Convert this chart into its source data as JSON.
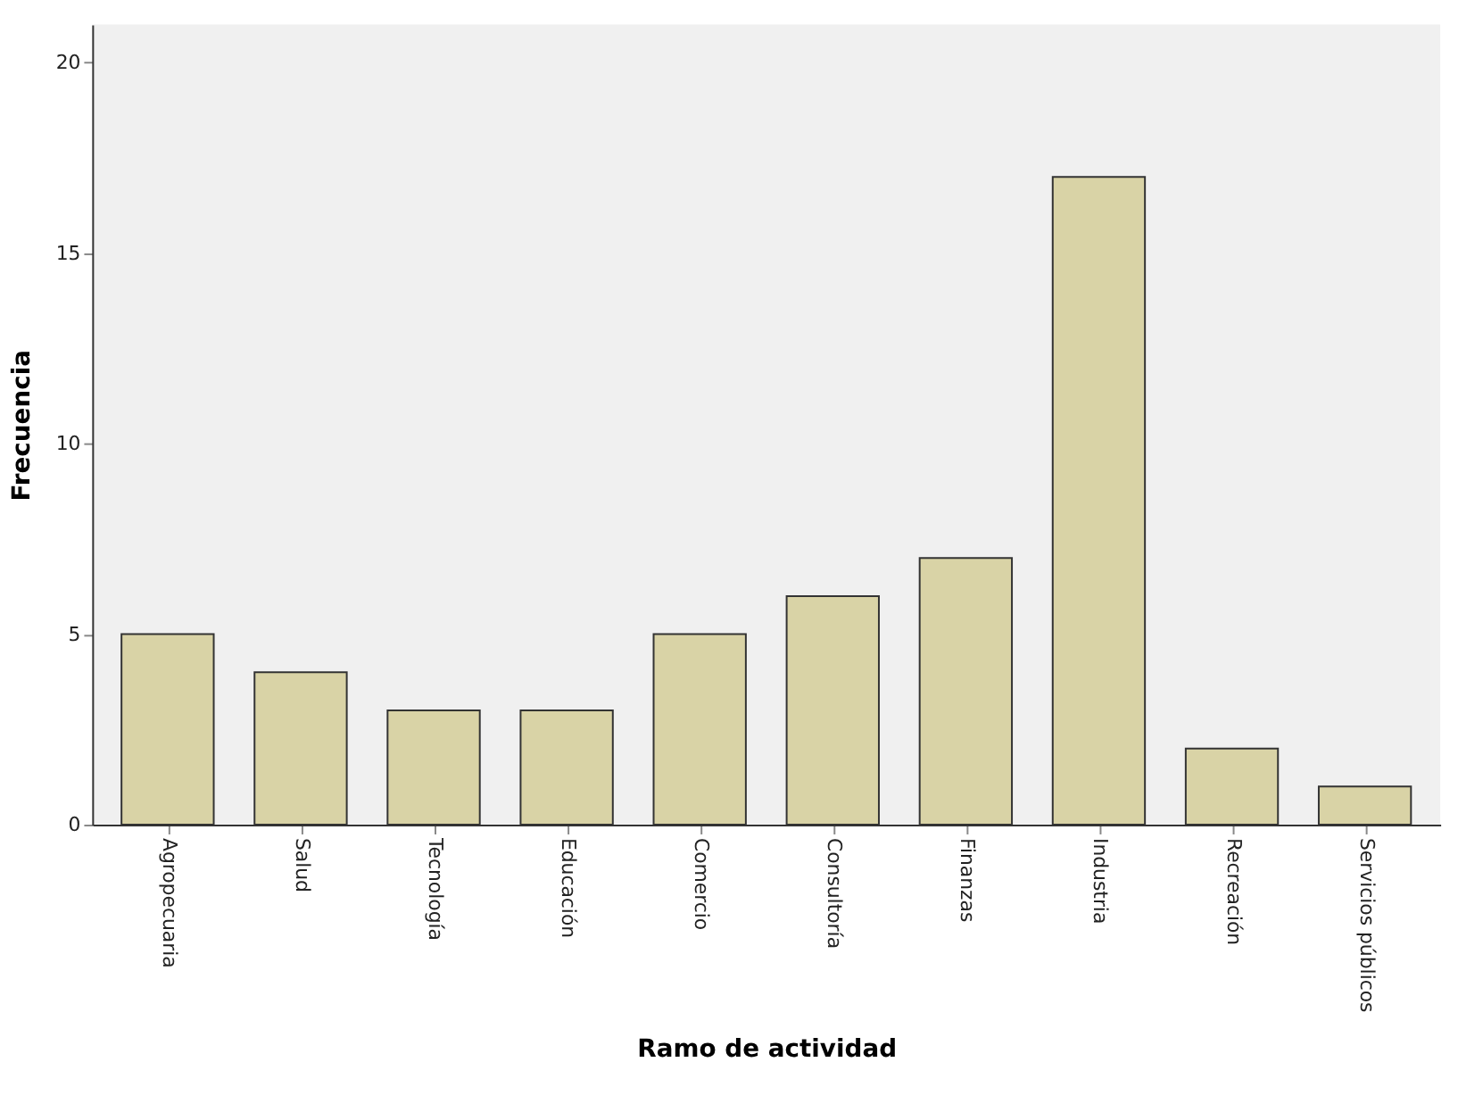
{
  "chart_data": {
    "type": "bar",
    "xlabel": "Ramo de actividad",
    "ylabel": "Frecuencia",
    "categories": [
      "Agropecuaria",
      "Salud",
      "Tecnología",
      "Educación",
      "Comercio",
      "Consultoría",
      "Finanzas",
      "Industria",
      "Recreación",
      "Servicios públicos"
    ],
    "values": [
      5,
      4,
      3,
      3,
      5,
      6,
      7,
      17,
      2,
      1
    ],
    "color": "#d9d3a6",
    "ylim": [
      0,
      21
    ],
    "yticks": [
      0,
      5,
      10,
      15,
      20
    ],
    "grid": false
  }
}
